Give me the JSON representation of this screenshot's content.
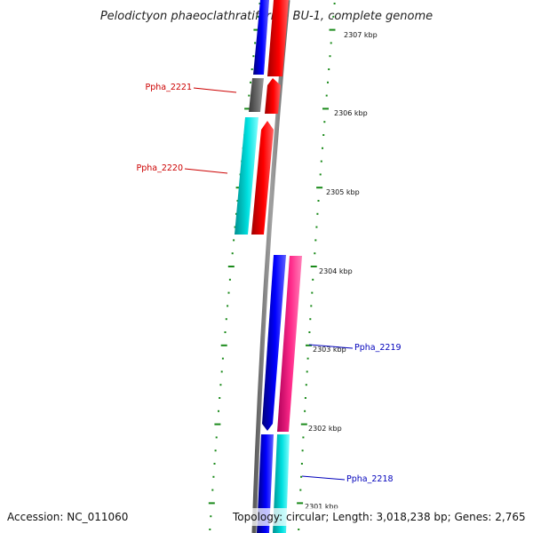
{
  "title": "Pelodictyon phaeoclathratiforme BU-1, complete genome",
  "accession": "Accession: NC_011060",
  "topology": "Topology: circular; Length: 3,018,238 bp; Genes: 2,765",
  "colors": {
    "backbone": "#8a8a8a",
    "ticks": "#1a8a1a",
    "label_left": "#cc0000",
    "label_right": "#0000bb"
  },
  "scale_ticks": [
    {
      "label": "2307 kbp"
    },
    {
      "label": "2306 kbp"
    },
    {
      "label": "2305 kbp"
    },
    {
      "label": "2304 kbp"
    },
    {
      "label": "2303 kbp"
    },
    {
      "label": "2302 kbp"
    },
    {
      "label": "2301 kbp"
    }
  ],
  "gene_labels": [
    {
      "name": "Ppha_2221"
    },
    {
      "name": "Ppha_2220"
    },
    {
      "name": "Ppha_2219"
    },
    {
      "name": "Ppha_2218"
    }
  ],
  "features": [
    {
      "id": "track1-top-blue",
      "color": "blue"
    },
    {
      "id": "track1-top-red",
      "color": "red"
    },
    {
      "id": "ppha-2221-gray",
      "color": "gray"
    },
    {
      "id": "ppha-2221-red",
      "color": "red"
    },
    {
      "id": "ppha-2220-cyan",
      "color": "cyan"
    },
    {
      "id": "ppha-2220-red",
      "color": "red"
    },
    {
      "id": "ppha-2219-blue",
      "color": "blue"
    },
    {
      "id": "ppha-2219-magenta",
      "color": "magenta"
    },
    {
      "id": "ppha-2218-blue",
      "color": "blue"
    },
    {
      "id": "ppha-2218-cyan",
      "color": "cyan"
    }
  ]
}
